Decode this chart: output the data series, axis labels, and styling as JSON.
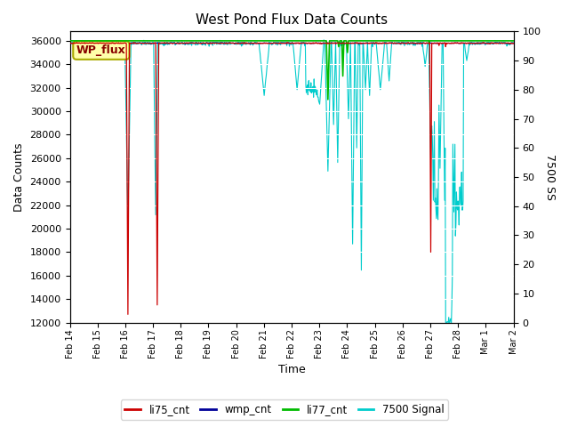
{
  "title": "West Pond Flux Data Counts",
  "xlabel": "Time",
  "ylabel_left": "Data Counts",
  "ylabel_right": "7500 SS",
  "annotation_text": "WP_flux",
  "ylim_left": [
    12000,
    36800
  ],
  "ylim_right": [
    0,
    100
  ],
  "yticks_left": [
    12000,
    14000,
    16000,
    18000,
    20000,
    22000,
    24000,
    26000,
    28000,
    30000,
    32000,
    34000,
    36000
  ],
  "yticks_right": [
    0,
    10,
    20,
    30,
    40,
    50,
    60,
    70,
    80,
    90,
    100
  ],
  "colors": {
    "li75_cnt": "#cc0000",
    "wmp_cnt": "#000099",
    "li77_cnt": "#00bb00",
    "signal_7500": "#00cccc",
    "background": "#e0e0e0",
    "annotation_bg": "#ffffaa",
    "annotation_border": "#aaaa00"
  },
  "legend_entries": [
    "li75_cnt",
    "wmp_cnt",
    "li77_cnt",
    "7500 Signal"
  ],
  "num_points": 864,
  "days": 16
}
